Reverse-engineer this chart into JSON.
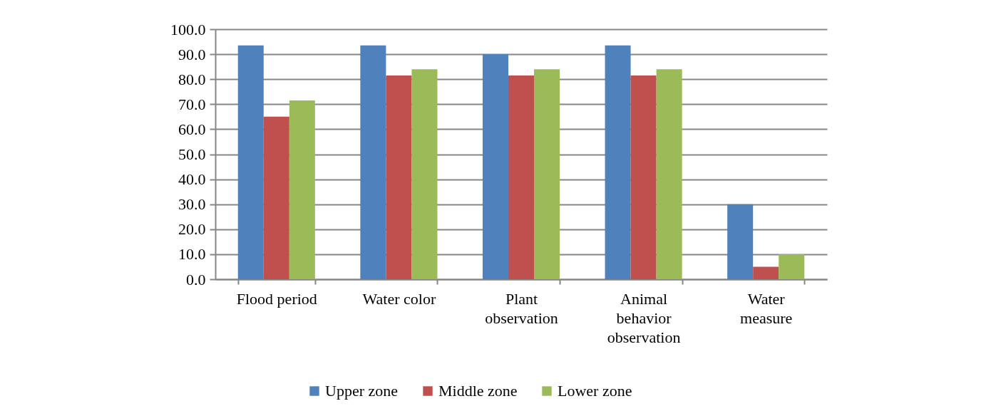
{
  "chart_data": {
    "type": "bar",
    "categories": [
      "Flood period",
      "Water color",
      "Plant observation",
      "Animal behavior observation",
      "Water measure"
    ],
    "series": [
      {
        "name": "Upper zone",
        "color": "#4f81bd",
        "values": [
          93.5,
          93.5,
          90.0,
          93.5,
          30.0
        ]
      },
      {
        "name": "Middle zone",
        "color": "#c0504d",
        "values": [
          65.0,
          81.5,
          81.5,
          81.5,
          5.0
        ]
      },
      {
        "name": "Lower zone",
        "color": "#9bbb59",
        "values": [
          71.5,
          84.0,
          84.0,
          84.0,
          10.0
        ]
      }
    ],
    "ylim": [
      0,
      100
    ],
    "yticks": [
      {
        "value": 0,
        "label": "0.0"
      },
      {
        "value": 10,
        "label": "10.0"
      },
      {
        "value": 20,
        "label": "20.0"
      },
      {
        "value": 30,
        "label": "30.0"
      },
      {
        "value": 40,
        "label": "40.0"
      },
      {
        "value": 50,
        "label": "50.0"
      },
      {
        "value": 60,
        "label": "60.0"
      },
      {
        "value": 70,
        "label": "70.0"
      },
      {
        "value": 80,
        "label": "80.0"
      },
      {
        "value": 90,
        "label": "90.0"
      },
      {
        "value": 100,
        "label": "100.0"
      }
    ],
    "grid": "y",
    "legend": "bottom"
  }
}
